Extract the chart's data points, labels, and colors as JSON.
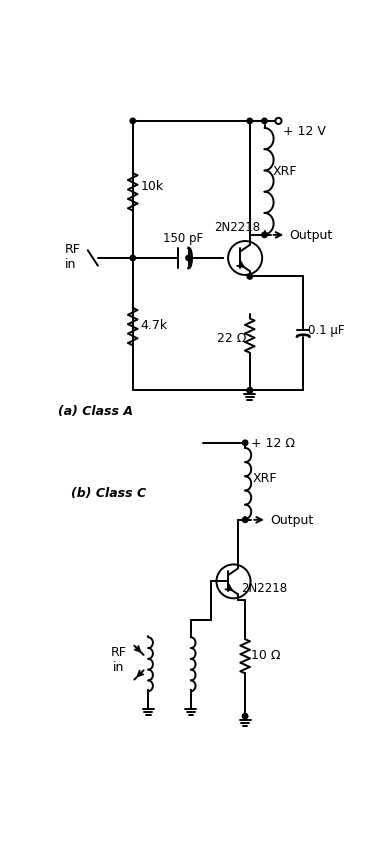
{
  "bg_color": "#ffffff",
  "line_color": "#000000",
  "circuit_a": {
    "label": "(a) Class A",
    "vcc": "+ 12 V",
    "r1_label": "10k",
    "r2_label": "4.7k",
    "re_label": "22 Ω",
    "ce_label": "0.1 μF",
    "cap_label": "150 pF",
    "inductor_label": "XRF",
    "transistor_label": "2N2218",
    "output_label": "Output",
    "input_label": "RF\nin"
  },
  "circuit_b": {
    "label": "(b) Class C",
    "vcc": "+ 12 Ω",
    "inductor_label": "XRF",
    "re_label": "10 Ω",
    "transistor_label": "2N2218",
    "output_label": "Output",
    "input_label": "RF\nin"
  }
}
